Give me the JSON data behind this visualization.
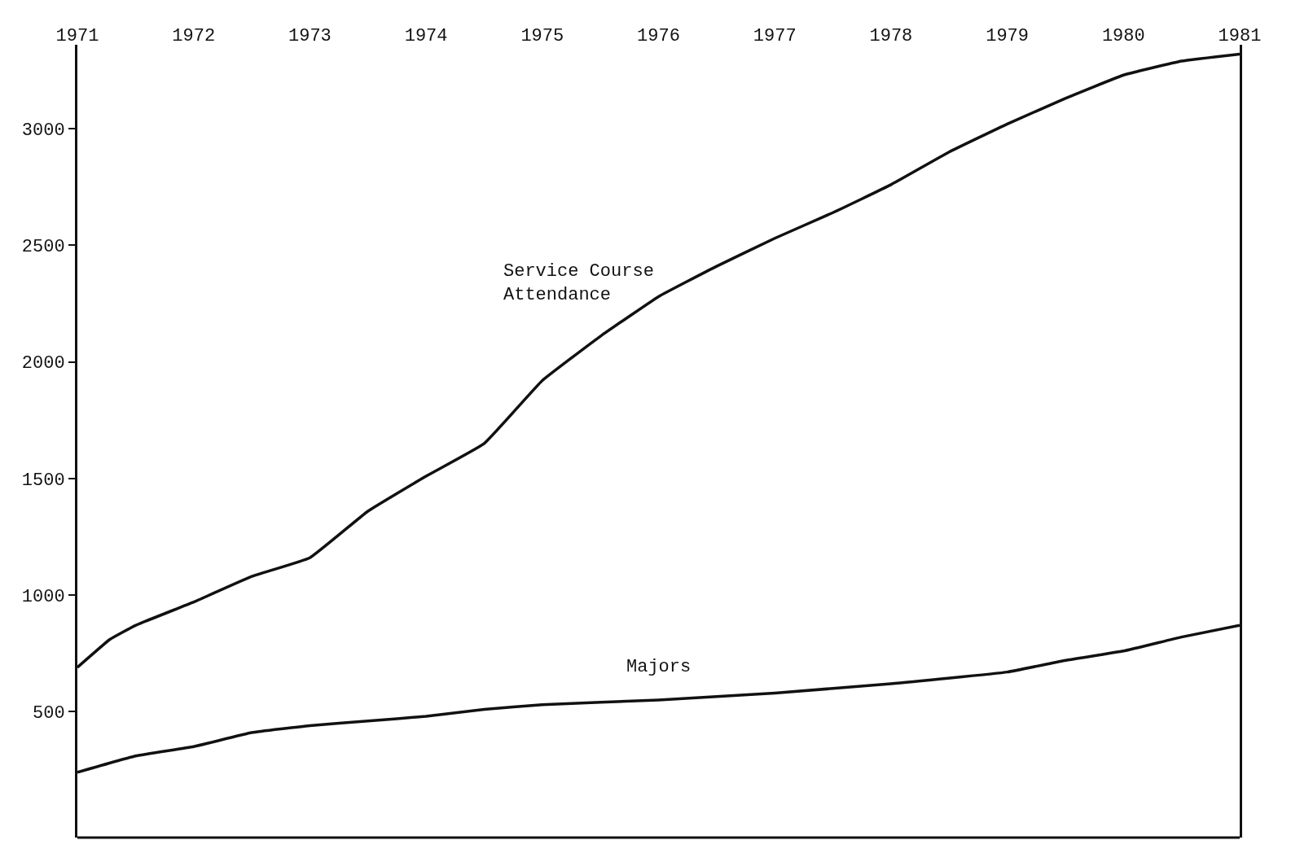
{
  "chart_data": {
    "type": "line",
    "xlim": [
      1971,
      1981
    ],
    "xticks": [
      1971,
      1972,
      1973,
      1974,
      1975,
      1976,
      1977,
      1978,
      1979,
      1980,
      1981
    ],
    "ylim": [
      -40,
      3360
    ],
    "yticks": [
      500,
      1000,
      1500,
      2000,
      2500,
      3000
    ],
    "legend": false,
    "marker": "none",
    "line_style": "solid",
    "series": [
      {
        "name": "Service Course Attendance",
        "color": "#111111",
        "x": [
          1971,
          1971.28,
          1971.5,
          1972,
          1972.5,
          1973,
          1973.5,
          1974,
          1974.5,
          1975,
          1975.5,
          1976,
          1976.5,
          1977,
          1977.5,
          1978,
          1978.5,
          1979,
          1979.5,
          1980,
          1980.5,
          1981
        ],
        "values": [
          690,
          810,
          870,
          970,
          1080,
          1160,
          1360,
          1510,
          1650,
          1920,
          2110,
          2280,
          2410,
          2530,
          2640,
          2760,
          2900,
          3020,
          3130,
          3230,
          3290,
          3320
        ]
      },
      {
        "name": "Majors",
        "color": "#111111",
        "x": [
          1971,
          1971.5,
          1972,
          1972.5,
          1973,
          1973.5,
          1974,
          1974.5,
          1975,
          1976,
          1977,
          1978,
          1979,
          1979.5,
          1980,
          1980.5,
          1981
        ],
        "values": [
          240,
          310,
          350,
          410,
          440,
          460,
          480,
          510,
          530,
          550,
          580,
          620,
          670,
          720,
          760,
          820,
          870
        ]
      }
    ]
  }
}
